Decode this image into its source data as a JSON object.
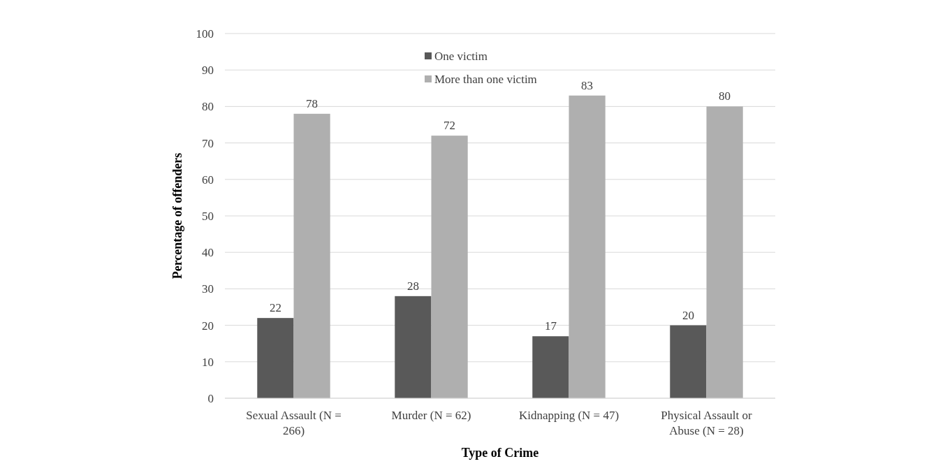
{
  "chart_data": {
    "type": "bar",
    "xlabel": "Type of Crime",
    "ylabel": "Percentage of offenders",
    "categories": [
      "Sexual Assault (N = 266)",
      "Murder (N = 62)",
      "Kidnapping (N = 47)",
      "Physical Assault or Abuse (N = 28)"
    ],
    "series": [
      {
        "name": "One victim",
        "color": "#595959",
        "values": [
          22,
          28,
          17,
          20
        ]
      },
      {
        "name": "More than one victim",
        "color": "#afafaf",
        "values": [
          78,
          72,
          83,
          80
        ]
      }
    ],
    "ylim": [
      0,
      100
    ],
    "yticks": [
      0,
      10,
      20,
      30,
      40,
      50,
      60,
      70,
      80,
      90,
      100
    ],
    "grid": "y",
    "legend": "top",
    "data_labels": true
  }
}
